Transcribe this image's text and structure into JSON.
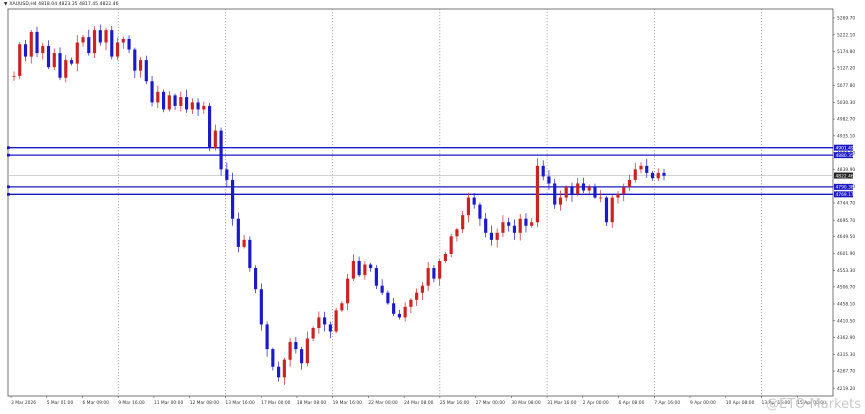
{
  "chart_title": "XAUUSD,H4  4818.04 4823.35 4817.45 4822.46",
  "watermark": "@ETO Markets",
  "colors": {
    "bull": "#cc2222",
    "bear": "#1a1acc",
    "level_line": "#1818c8",
    "current_line": "#b8b8b8",
    "grid": "#7a7a7a",
    "frame": "#555555"
  },
  "icons": [
    "triangle-down-icon"
  ],
  "chart_data": {
    "type": "candlestick",
    "symbol": "XAUUSD",
    "timeframe": "H4",
    "ylim": [
      4197,
      5295
    ],
    "y_ticks": [
      "5269.70",
      "5222.10",
      "5174.80",
      "5127.20",
      "5077.80",
      "5030.30",
      "4982.70",
      "4935.10",
      "4887.00",
      "4839.90",
      "4792.30",
      "4744.70",
      "4695.70",
      "4649.50",
      "4601.90",
      "4553.30",
      "4506.70",
      "4458.10",
      "4410.50",
      "4362.90",
      "4315.30",
      "4267.70",
      "4219.20"
    ],
    "x_ticks": [
      "3 Mar 2026",
      "5 Mar 01:00",
      "6 Mar 09:00",
      "9 Mar 16:00",
      "11 Mar 00:00",
      "12 Mar 08:00",
      "13 Mar 16:00",
      "17 Mar 00:00",
      "18 Mar 08:00",
      "19 Mar 16:00",
      "22 Mar 00:00",
      "24 Mar 08:00",
      "25 Mar 16:00",
      "27 Mar 00:00",
      "30 Mar 08:00",
      "31 Mar 16:00",
      "2 Apr 00:00",
      "6 Apr 08:00",
      "7 Apr 16:00",
      "9 Apr 00:00",
      "10 Apr 08:00",
      "13 Apr 16:00",
      "15 Apr 00:00"
    ],
    "vertical_gridlines_at_ticks": [
      3,
      6,
      9,
      12,
      15,
      18,
      21
    ],
    "horizontal_levels": [
      {
        "price": 4901.49,
        "label": "4901.49"
      },
      {
        "price": 4880.35,
        "label": "4880.35"
      },
      {
        "price": 4790.38,
        "label": "4790.38"
      },
      {
        "price": 4769.17,
        "label": "4769.17"
      }
    ],
    "current_price": {
      "price": 4822.46,
      "label": "4822.46"
    },
    "start_price": 5105,
    "price_path_closes": [
      5105,
      5195,
      5160,
      5230,
      5170,
      5190,
      5130,
      5170,
      5100,
      5150,
      5140,
      5200,
      5215,
      5170,
      5235,
      5200,
      5235,
      5160,
      5200,
      5210,
      5180,
      5120,
      5150,
      5090,
      5030,
      5060,
      5010,
      5050,
      5020,
      5045,
      5010,
      5030,
      5010,
      5020,
      4900,
      4950,
      4840,
      4810,
      4700,
      4620,
      4640,
      4560,
      4500,
      4400,
      4330,
      4280,
      4250,
      4300,
      4350,
      4330,
      4290,
      4360,
      4390,
      4420,
      4400,
      4380,
      4440,
      4460,
      4530,
      4580,
      4540,
      4570,
      4560,
      4510,
      4490,
      4460,
      4430,
      4420,
      4450,
      4470,
      4490,
      4510,
      4560,
      4530,
      4580,
      4600,
      4650,
      4670,
      4710,
      4760,
      4740,
      4700,
      4660,
      4640,
      4660,
      4690,
      4680,
      4660,
      4700,
      4680,
      4690,
      4850,
      4820,
      4800,
      4740,
      4760,
      4790,
      4770,
      4800,
      4780,
      4790,
      4760,
      4760,
      4690,
      4760,
      4770,
      4790,
      4810,
      4840,
      4850,
      4830,
      4815,
      4830,
      4822
    ]
  }
}
